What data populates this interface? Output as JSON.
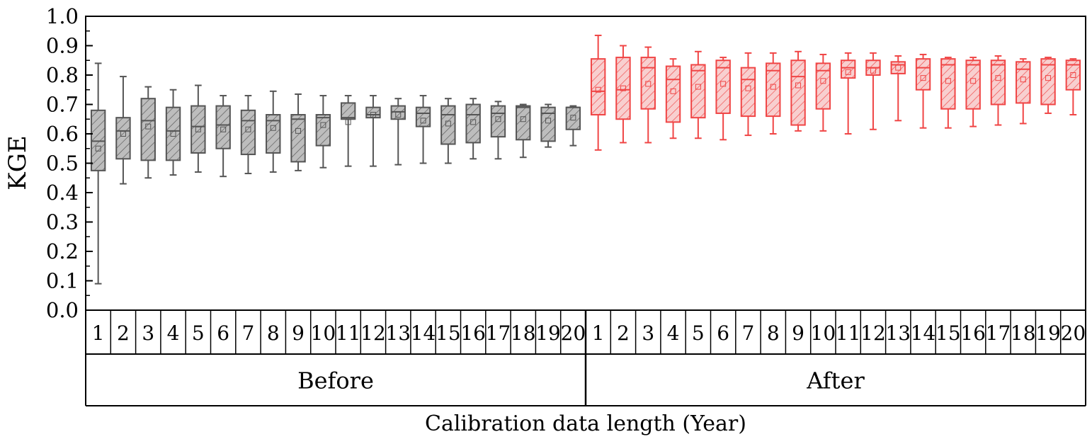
{
  "chart_data": {
    "type": "box",
    "ylabel": "KGE",
    "xlabel": "Calibration data length (Year)",
    "ylim": [
      0,
      1.0
    ],
    "yticks": [
      "0.0",
      "0.1",
      "0.2",
      "0.3",
      "0.4",
      "0.5",
      "0.6",
      "0.7",
      "0.8",
      "0.9",
      "1.0"
    ],
    "grid": false,
    "legend": "none",
    "categories": [
      "1",
      "2",
      "3",
      "4",
      "5",
      "6",
      "7",
      "8",
      "9",
      "10",
      "11",
      "12",
      "13",
      "14",
      "15",
      "16",
      "17",
      "18",
      "19",
      "20"
    ],
    "groups": [
      {
        "name": "Before",
        "color": "#555555",
        "fill": "#bdbdbd",
        "hatch": "#555555",
        "boxes": [
          {
            "min": 0.09,
            "q1": 0.475,
            "median": 0.575,
            "q3": 0.68,
            "max": 0.84,
            "mean": 0.55
          },
          {
            "min": 0.43,
            "q1": 0.515,
            "median": 0.61,
            "q3": 0.655,
            "max": 0.795,
            "mean": 0.6
          },
          {
            "min": 0.45,
            "q1": 0.51,
            "median": 0.645,
            "q3": 0.72,
            "max": 0.76,
            "mean": 0.625
          },
          {
            "min": 0.46,
            "q1": 0.51,
            "median": 0.61,
            "q3": 0.69,
            "max": 0.75,
            "mean": 0.6
          },
          {
            "min": 0.47,
            "q1": 0.535,
            "median": 0.625,
            "q3": 0.695,
            "max": 0.765,
            "mean": 0.615
          },
          {
            "min": 0.455,
            "q1": 0.55,
            "median": 0.63,
            "q3": 0.695,
            "max": 0.73,
            "mean": 0.615
          },
          {
            "min": 0.465,
            "q1": 0.53,
            "median": 0.645,
            "q3": 0.68,
            "max": 0.73,
            "mean": 0.615
          },
          {
            "min": 0.47,
            "q1": 0.535,
            "median": 0.645,
            "q3": 0.665,
            "max": 0.745,
            "mean": 0.62
          },
          {
            "min": 0.475,
            "q1": 0.505,
            "median": 0.65,
            "q3": 0.665,
            "max": 0.735,
            "mean": 0.61
          },
          {
            "min": 0.485,
            "q1": 0.56,
            "median": 0.655,
            "q3": 0.665,
            "max": 0.73,
            "mean": 0.63
          },
          {
            "min": 0.49,
            "q1": 0.65,
            "median": 0.655,
            "q3": 0.705,
            "max": 0.73,
            "mean": 0.64
          },
          {
            "min": 0.49,
            "q1": 0.655,
            "median": 0.665,
            "q3": 0.69,
            "max": 0.73,
            "mean": 0.665
          },
          {
            "min": 0.495,
            "q1": 0.65,
            "median": 0.675,
            "q3": 0.695,
            "max": 0.72,
            "mean": 0.665
          },
          {
            "min": 0.5,
            "q1": 0.625,
            "median": 0.67,
            "q3": 0.69,
            "max": 0.73,
            "mean": 0.645
          },
          {
            "min": 0.5,
            "q1": 0.565,
            "median": 0.665,
            "q3": 0.695,
            "max": 0.72,
            "mean": 0.635
          },
          {
            "min": 0.515,
            "q1": 0.57,
            "median": 0.665,
            "q3": 0.7,
            "max": 0.72,
            "mean": 0.64
          },
          {
            "min": 0.515,
            "q1": 0.59,
            "median": 0.67,
            "q3": 0.695,
            "max": 0.71,
            "mean": 0.65
          },
          {
            "min": 0.52,
            "q1": 0.58,
            "median": 0.69,
            "q3": 0.695,
            "max": 0.7,
            "mean": 0.65
          },
          {
            "min": 0.555,
            "q1": 0.575,
            "median": 0.67,
            "q3": 0.69,
            "max": 0.7,
            "mean": 0.645
          },
          {
            "min": 0.56,
            "q1": 0.615,
            "median": 0.69,
            "q3": 0.69,
            "max": 0.695,
            "mean": 0.655
          }
        ]
      },
      {
        "name": "After",
        "color": "#f04545",
        "fill": "#f8cfcf",
        "hatch": "#f04545",
        "boxes": [
          {
            "min": 0.545,
            "q1": 0.665,
            "median": 0.745,
            "q3": 0.855,
            "max": 0.935,
            "mean": 0.75
          },
          {
            "min": 0.57,
            "q1": 0.65,
            "median": 0.75,
            "q3": 0.86,
            "max": 0.9,
            "mean": 0.755
          },
          {
            "min": 0.57,
            "q1": 0.685,
            "median": 0.825,
            "q3": 0.86,
            "max": 0.895,
            "mean": 0.77
          },
          {
            "min": 0.585,
            "q1": 0.64,
            "median": 0.785,
            "q3": 0.83,
            "max": 0.855,
            "mean": 0.745
          },
          {
            "min": 0.585,
            "q1": 0.655,
            "median": 0.815,
            "q3": 0.835,
            "max": 0.88,
            "mean": 0.76
          },
          {
            "min": 0.58,
            "q1": 0.67,
            "median": 0.825,
            "q3": 0.85,
            "max": 0.86,
            "mean": 0.77
          },
          {
            "min": 0.595,
            "q1": 0.66,
            "median": 0.785,
            "q3": 0.825,
            "max": 0.875,
            "mean": 0.755
          },
          {
            "min": 0.6,
            "q1": 0.66,
            "median": 0.815,
            "q3": 0.84,
            "max": 0.875,
            "mean": 0.76
          },
          {
            "min": 0.61,
            "q1": 0.63,
            "median": 0.795,
            "q3": 0.85,
            "max": 0.88,
            "mean": 0.765
          },
          {
            "min": 0.61,
            "q1": 0.685,
            "median": 0.815,
            "q3": 0.84,
            "max": 0.87,
            "mean": 0.78
          },
          {
            "min": 0.6,
            "q1": 0.79,
            "median": 0.825,
            "q3": 0.85,
            "max": 0.875,
            "mean": 0.81
          },
          {
            "min": 0.615,
            "q1": 0.8,
            "median": 0.825,
            "q3": 0.85,
            "max": 0.875,
            "mean": 0.815
          },
          {
            "min": 0.645,
            "q1": 0.805,
            "median": 0.835,
            "q3": 0.845,
            "max": 0.865,
            "mean": 0.825
          },
          {
            "min": 0.62,
            "q1": 0.75,
            "median": 0.825,
            "q3": 0.855,
            "max": 0.87,
            "mean": 0.79
          },
          {
            "min": 0.62,
            "q1": 0.685,
            "median": 0.835,
            "q3": 0.855,
            "max": 0.86,
            "mean": 0.78
          },
          {
            "min": 0.625,
            "q1": 0.685,
            "median": 0.835,
            "q3": 0.85,
            "max": 0.86,
            "mean": 0.78
          },
          {
            "min": 0.63,
            "q1": 0.7,
            "median": 0.835,
            "q3": 0.85,
            "max": 0.865,
            "mean": 0.79
          },
          {
            "min": 0.635,
            "q1": 0.705,
            "median": 0.82,
            "q3": 0.845,
            "max": 0.855,
            "mean": 0.785
          },
          {
            "min": 0.67,
            "q1": 0.7,
            "median": 0.835,
            "q3": 0.855,
            "max": 0.86,
            "mean": 0.79
          },
          {
            "min": 0.665,
            "q1": 0.75,
            "median": 0.835,
            "q3": 0.85,
            "max": 0.855,
            "mean": 0.8
          }
        ]
      }
    ]
  }
}
